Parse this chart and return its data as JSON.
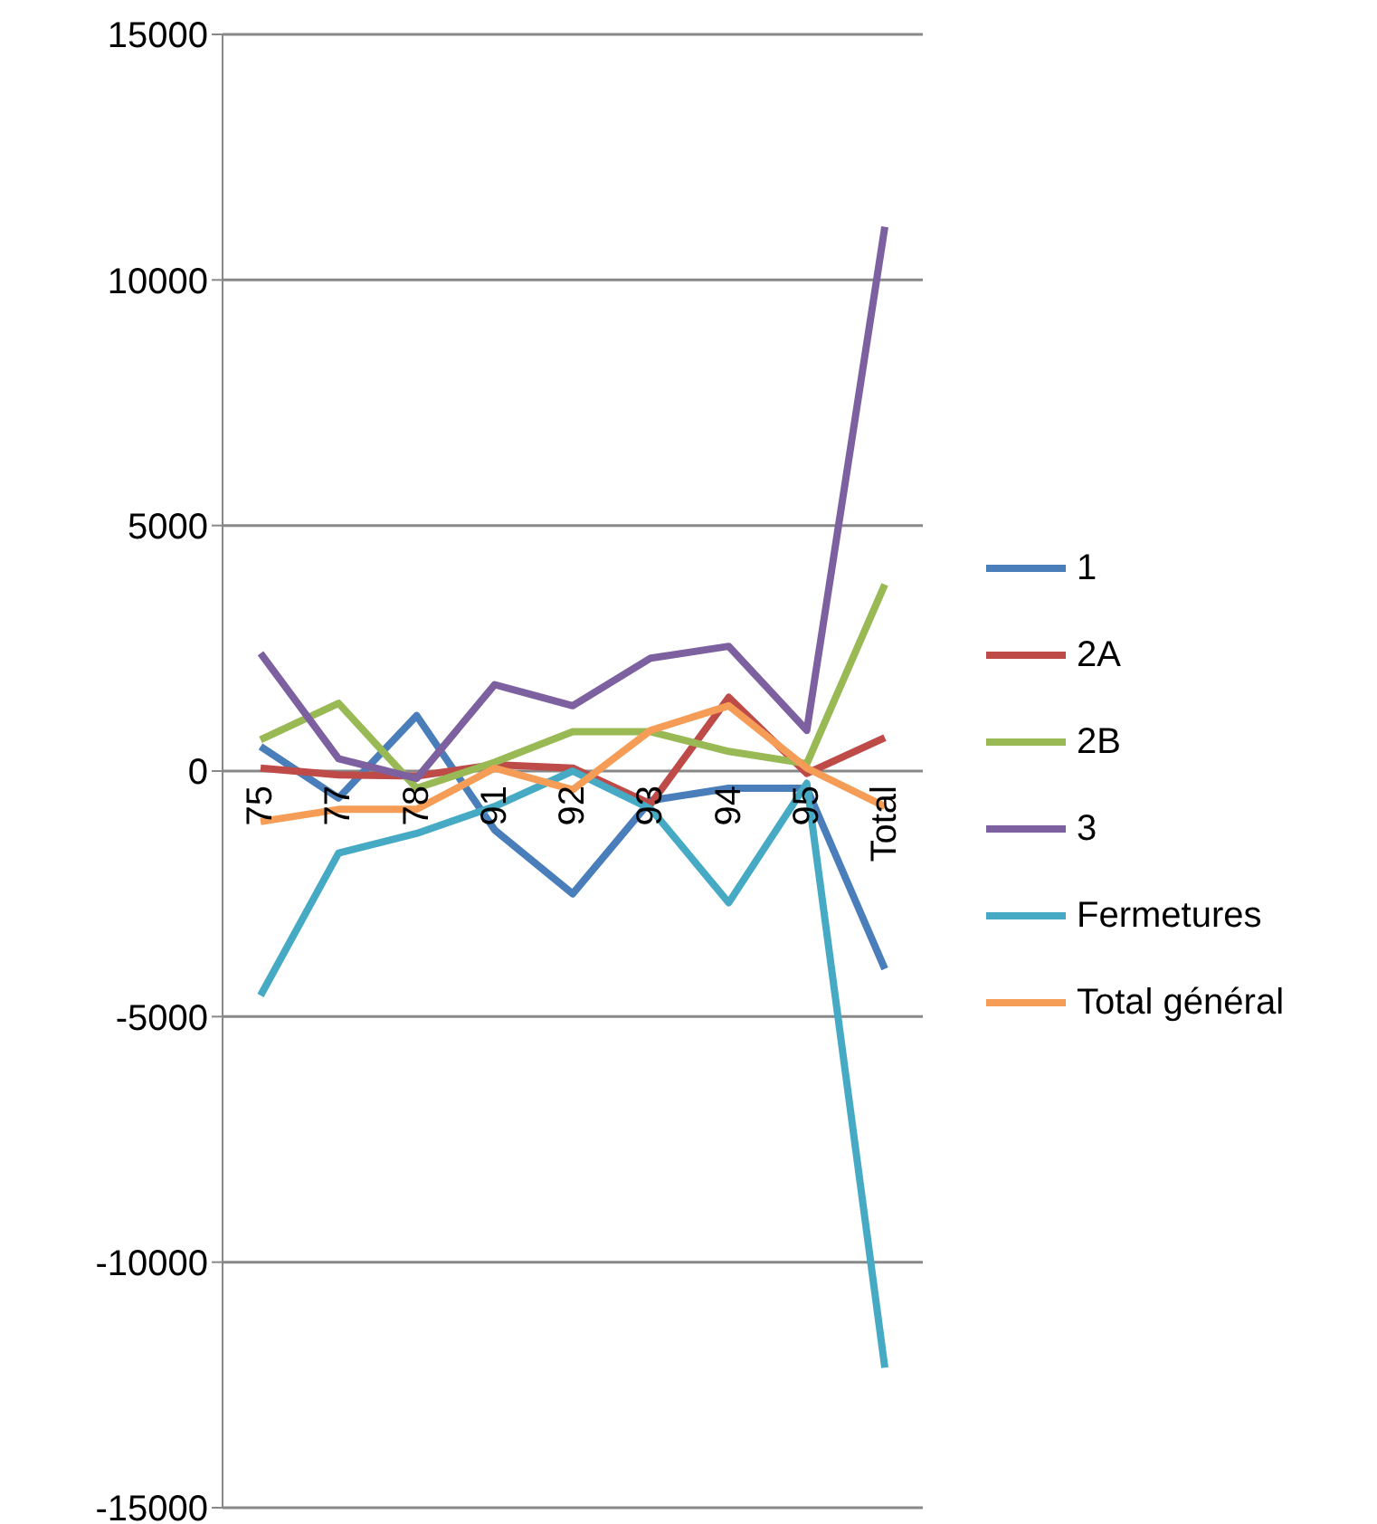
{
  "chart_data": {
    "type": "line",
    "categories": [
      "75",
      "77",
      "78",
      "91",
      "92",
      "93",
      "94",
      "95",
      "Total"
    ],
    "series": [
      {
        "name": "1",
        "color": "#4a7ebb",
        "values": [
          500,
          -550,
          1130,
          -1200,
          -2500,
          -600,
          -350,
          -350,
          -4030
        ]
      },
      {
        "name": "2A",
        "color": "#be4b48",
        "values": [
          60,
          -80,
          -100,
          130,
          60,
          -670,
          1500,
          -50,
          680
        ]
      },
      {
        "name": "2B",
        "color": "#98b954",
        "values": [
          640,
          1380,
          -350,
          180,
          800,
          800,
          400,
          150,
          3800
        ]
      },
      {
        "name": "3",
        "color": "#7d60a0",
        "values": [
          2400,
          250,
          -150,
          1760,
          1330,
          2300,
          2540,
          830,
          11080
        ]
      },
      {
        "name": "Fermetures",
        "color": "#46aac5",
        "values": [
          -4570,
          -1670,
          -1270,
          -720,
          0,
          -770,
          -2680,
          -250,
          -12150
        ]
      },
      {
        "name": "Total général",
        "color": "#f59d56",
        "values": [
          -1030,
          -780,
          -780,
          60,
          -380,
          830,
          1330,
          60,
          -720
        ]
      }
    ],
    "ylim": [
      -15000,
      15000
    ],
    "yticks": [
      -15000,
      -10000,
      -5000,
      0,
      5000,
      10000,
      15000
    ],
    "grid": "y",
    "legend": "right",
    "marker": "none",
    "line_style": "solid"
  }
}
